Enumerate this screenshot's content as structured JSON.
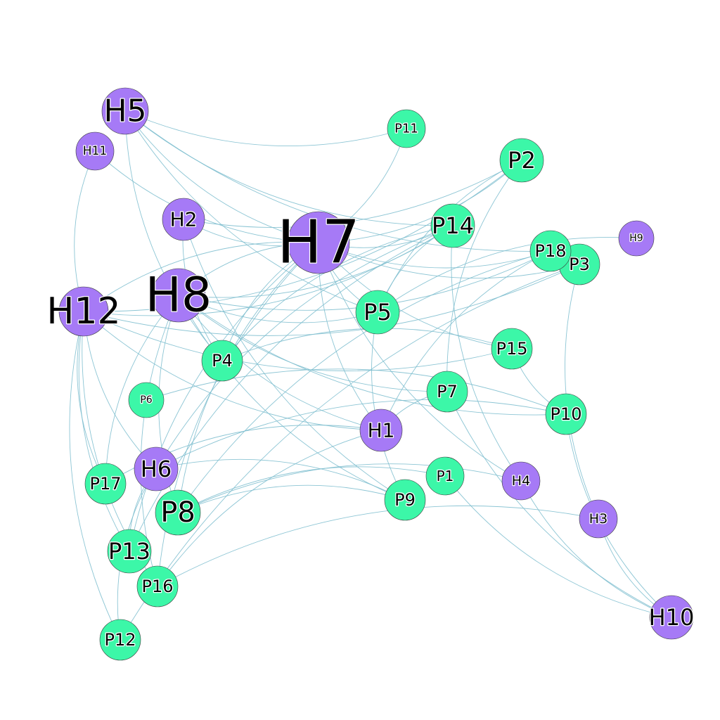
{
  "colors": {
    "H": "#a67af6",
    "P": "#3cf7a8",
    "edge": "#7fbfcf"
  },
  "nodes": [
    {
      "id": "H1",
      "group": "H"
    },
    {
      "id": "H2",
      "group": "H"
    },
    {
      "id": "H3",
      "group": "H"
    },
    {
      "id": "H4",
      "group": "H"
    },
    {
      "id": "H5",
      "group": "H"
    },
    {
      "id": "H6",
      "group": "H"
    },
    {
      "id": "H7",
      "group": "H"
    },
    {
      "id": "H8",
      "group": "H"
    },
    {
      "id": "H9",
      "group": "H"
    },
    {
      "id": "H10",
      "group": "H"
    },
    {
      "id": "H11",
      "group": "H"
    },
    {
      "id": "H12",
      "group": "H"
    },
    {
      "id": "P1",
      "group": "P"
    },
    {
      "id": "P2",
      "group": "P"
    },
    {
      "id": "P3",
      "group": "P"
    },
    {
      "id": "P4",
      "group": "P"
    },
    {
      "id": "P5",
      "group": "P"
    },
    {
      "id": "P6",
      "group": "P"
    },
    {
      "id": "P7",
      "group": "P"
    },
    {
      "id": "P8",
      "group": "P"
    },
    {
      "id": "P9",
      "group": "P"
    },
    {
      "id": "P10",
      "group": "P"
    },
    {
      "id": "P11",
      "group": "P"
    },
    {
      "id": "P12",
      "group": "P"
    },
    {
      "id": "P13",
      "group": "P"
    },
    {
      "id": "P14",
      "group": "P"
    },
    {
      "id": "P15",
      "group": "P"
    },
    {
      "id": "P16",
      "group": "P"
    },
    {
      "id": "P17",
      "group": "P"
    },
    {
      "id": "P18",
      "group": "P"
    }
  ],
  "edges": [
    [
      "H5",
      "P11"
    ],
    [
      "H5",
      "P14"
    ],
    [
      "H5",
      "P18"
    ],
    [
      "H5",
      "H7"
    ],
    [
      "H5",
      "P5"
    ],
    [
      "H5",
      "P4"
    ],
    [
      "H11",
      "H7"
    ],
    [
      "H11",
      "H12"
    ],
    [
      "H2",
      "H7"
    ],
    [
      "H2",
      "P4"
    ],
    [
      "H2",
      "P9"
    ],
    [
      "H2",
      "P2"
    ],
    [
      "H7",
      "P11"
    ],
    [
      "H7",
      "P2"
    ],
    [
      "H7",
      "P14"
    ],
    [
      "H7",
      "P18"
    ],
    [
      "H7",
      "P3"
    ],
    [
      "H7",
      "P5"
    ],
    [
      "H7",
      "P15"
    ],
    [
      "H7",
      "H12"
    ],
    [
      "H7",
      "H8"
    ],
    [
      "H7",
      "P4"
    ],
    [
      "H7",
      "P8"
    ],
    [
      "H7",
      "P13"
    ],
    [
      "H7",
      "P16"
    ],
    [
      "H7",
      "H1"
    ],
    [
      "H7",
      "H4"
    ],
    [
      "H8",
      "P14"
    ],
    [
      "H8",
      "P18"
    ],
    [
      "H8",
      "P5"
    ],
    [
      "H8",
      "P7"
    ],
    [
      "H8",
      "P10"
    ],
    [
      "H8",
      "P17"
    ],
    [
      "H8",
      "P16"
    ],
    [
      "H8",
      "P8"
    ],
    [
      "H8",
      "H1"
    ],
    [
      "H8",
      "P9"
    ],
    [
      "H12",
      "P2"
    ],
    [
      "H12",
      "P14"
    ],
    [
      "H12",
      "P3"
    ],
    [
      "H12",
      "P15"
    ],
    [
      "H12",
      "H6"
    ],
    [
      "H12",
      "P13"
    ],
    [
      "H12",
      "P12"
    ],
    [
      "H12",
      "P16"
    ],
    [
      "H12",
      "H1"
    ],
    [
      "H12",
      "P17"
    ],
    [
      "P14",
      "P4"
    ],
    [
      "P14",
      "H6"
    ],
    [
      "P14",
      "H4"
    ],
    [
      "P14",
      "P13"
    ],
    [
      "P14",
      "P5"
    ],
    [
      "P18",
      "H1"
    ],
    [
      "P18",
      "P8"
    ],
    [
      "P3",
      "H3"
    ],
    [
      "P3",
      "P12"
    ],
    [
      "H9",
      "P5"
    ],
    [
      "P2",
      "P7"
    ],
    [
      "P2",
      "P5"
    ],
    [
      "P5",
      "P9"
    ],
    [
      "P15",
      "P10"
    ],
    [
      "P15",
      "P4"
    ],
    [
      "P7",
      "H1"
    ],
    [
      "P7",
      "H10"
    ],
    [
      "P10",
      "H10"
    ],
    [
      "P10",
      "P6"
    ],
    [
      "P10",
      "H6"
    ],
    [
      "H1",
      "P16"
    ],
    [
      "H1",
      "P17"
    ],
    [
      "P1",
      "P8"
    ],
    [
      "P1",
      "H10"
    ],
    [
      "P9",
      "P8"
    ],
    [
      "P9",
      "H6"
    ],
    [
      "H4",
      "P8"
    ],
    [
      "H4",
      "H10"
    ],
    [
      "H3",
      "H10"
    ],
    [
      "H3",
      "P16"
    ],
    [
      "H6",
      "P13"
    ],
    [
      "H6",
      "P12"
    ]
  ]
}
